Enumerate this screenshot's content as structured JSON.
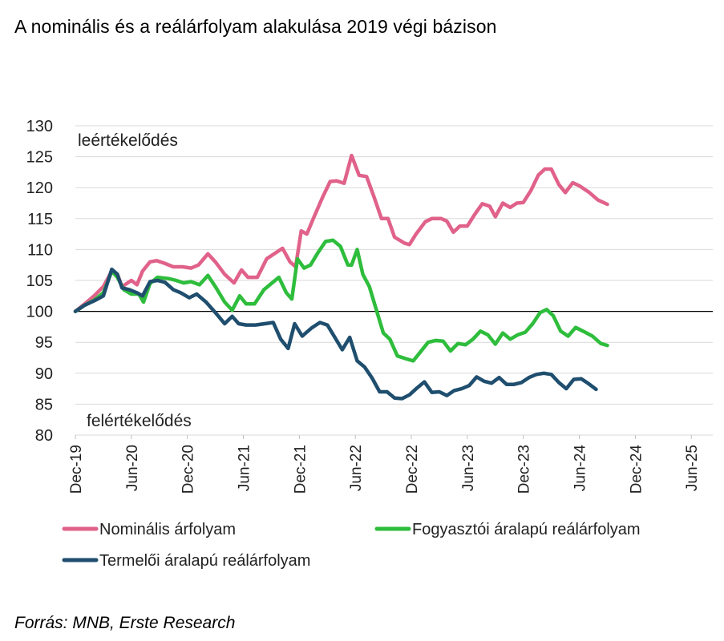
{
  "title": "A nominális és a reálárfolyam alakulása 2019 végi bázison",
  "source": "Forrás: MNB, Erste Research",
  "chart_data": {
    "type": "line",
    "title": "A nominális és a reálárfolyam alakulása 2019 végi bázison",
    "ylim": [
      80,
      130
    ],
    "yticks": [
      80,
      85,
      90,
      95,
      100,
      105,
      110,
      115,
      120,
      125,
      130
    ],
    "xlim": [
      0,
      68
    ],
    "xticks": [
      {
        "label": "Dec-19",
        "x": 0
      },
      {
        "label": "Jun-20",
        "x": 6
      },
      {
        "label": "Dec-20",
        "x": 12
      },
      {
        "label": "Jun-21",
        "x": 18
      },
      {
        "label": "Dec-21",
        "x": 24
      },
      {
        "label": "Jun-22",
        "x": 30
      },
      {
        "label": "Dec-22",
        "x": 36
      },
      {
        "label": "Jun-23",
        "x": 42
      },
      {
        "label": "Dec-23",
        "x": 48
      },
      {
        "label": "Jun-24",
        "x": 54
      },
      {
        "label": "Dec-24",
        "x": 60
      },
      {
        "label": "Jun-25",
        "x": 66
      }
    ],
    "reference_line": 100,
    "annotations": {
      "top": "leértékelődés",
      "bottom": "felértékelődés"
    },
    "series": [
      {
        "name": "Nominális árfolyam",
        "color": "#e0628a",
        "points": [
          [
            0,
            100
          ],
          [
            1,
            101.2
          ],
          [
            2,
            102.5
          ],
          [
            3,
            104
          ],
          [
            3.9,
            106.5
          ],
          [
            4.5,
            106
          ],
          [
            5,
            104
          ],
          [
            6,
            105
          ],
          [
            6.6,
            104.3
          ],
          [
            7.2,
            106.5
          ],
          [
            8,
            108
          ],
          [
            8.7,
            108.2
          ],
          [
            9.5,
            107.8
          ],
          [
            10.5,
            107.2
          ],
          [
            11.5,
            107.2
          ],
          [
            12.4,
            107
          ],
          [
            13.2,
            107.5
          ],
          [
            14.2,
            109.3
          ],
          [
            15,
            108
          ],
          [
            16,
            106
          ],
          [
            17,
            104.6
          ],
          [
            17.8,
            106.7
          ],
          [
            18.5,
            105.5
          ],
          [
            19.5,
            105.5
          ],
          [
            20.5,
            108.5
          ],
          [
            21.5,
            109.5
          ],
          [
            22.2,
            110.2
          ],
          [
            23,
            108
          ],
          [
            23.6,
            107.2
          ],
          [
            24.2,
            113
          ],
          [
            24.8,
            112.5
          ],
          [
            25.5,
            115
          ],
          [
            26.5,
            118.5
          ],
          [
            27.3,
            121
          ],
          [
            28,
            121.1
          ],
          [
            28.8,
            120.7
          ],
          [
            29.6,
            125.2
          ],
          [
            30.4,
            122
          ],
          [
            31.2,
            121.8
          ],
          [
            32,
            118.5
          ],
          [
            32.8,
            115
          ],
          [
            33.5,
            115
          ],
          [
            34.2,
            112
          ],
          [
            35.3,
            111
          ],
          [
            35.8,
            110.8
          ],
          [
            36.5,
            112.5
          ],
          [
            37.5,
            114.5
          ],
          [
            38.2,
            115
          ],
          [
            39.2,
            115
          ],
          [
            39.8,
            114.6
          ],
          [
            40.5,
            112.8
          ],
          [
            41.2,
            113.8
          ],
          [
            42,
            113.8
          ],
          [
            42.8,
            115.7
          ],
          [
            43.6,
            117.4
          ],
          [
            44.4,
            117
          ],
          [
            45,
            115.3
          ],
          [
            45.8,
            117.5
          ],
          [
            46.6,
            116.8
          ],
          [
            47.3,
            117.5
          ],
          [
            48,
            117.6
          ],
          [
            48.8,
            119.5
          ],
          [
            49.6,
            122
          ],
          [
            50.3,
            123
          ],
          [
            51,
            123
          ],
          [
            51.8,
            120.5
          ],
          [
            52.5,
            119.2
          ],
          [
            53.3,
            120.8
          ],
          [
            54,
            120.3
          ],
          [
            55,
            119.3
          ],
          [
            56,
            118
          ],
          [
            57,
            117.3
          ]
        ]
      },
      {
        "name": "Fogyasztói áralapú reálárfolyam",
        "color": "#2ebd3c",
        "points": [
          [
            0,
            100
          ],
          [
            1,
            101
          ],
          [
            2,
            101.8
          ],
          [
            3,
            103
          ],
          [
            3.9,
            106.5
          ],
          [
            4.5,
            105.5
          ],
          [
            5.2,
            103.5
          ],
          [
            6,
            102.8
          ],
          [
            6.8,
            102.8
          ],
          [
            7.3,
            101.5
          ],
          [
            8,
            104.5
          ],
          [
            8.8,
            105.5
          ],
          [
            10,
            105.3
          ],
          [
            10.8,
            105
          ],
          [
            11.6,
            104.6
          ],
          [
            12.4,
            104.8
          ],
          [
            13.3,
            104.3
          ],
          [
            14.2,
            105.8
          ],
          [
            15,
            104
          ],
          [
            16,
            101.5
          ],
          [
            16.8,
            100.2
          ],
          [
            17.6,
            102.5
          ],
          [
            18.3,
            101.2
          ],
          [
            19.2,
            101.2
          ],
          [
            20.2,
            103.5
          ],
          [
            21,
            104.5
          ],
          [
            21.8,
            105.5
          ],
          [
            22.6,
            103
          ],
          [
            23.2,
            102
          ],
          [
            23.8,
            108.5
          ],
          [
            24.5,
            107
          ],
          [
            25.2,
            107.5
          ],
          [
            26,
            109.5
          ],
          [
            26.8,
            111.3
          ],
          [
            27.6,
            111.5
          ],
          [
            28.4,
            110.5
          ],
          [
            29.2,
            107.5
          ],
          [
            29.6,
            107.5
          ],
          [
            30.2,
            110
          ],
          [
            30.8,
            106
          ],
          [
            31.5,
            104
          ],
          [
            32.2,
            100.5
          ],
          [
            33,
            96.5
          ],
          [
            33.7,
            95.5
          ],
          [
            34.5,
            92.8
          ],
          [
            35.5,
            92.3
          ],
          [
            36.2,
            92
          ],
          [
            37,
            93.5
          ],
          [
            37.8,
            95
          ],
          [
            38.6,
            95.3
          ],
          [
            39.4,
            95.2
          ],
          [
            40.2,
            93.6
          ],
          [
            41,
            94.8
          ],
          [
            41.8,
            94.6
          ],
          [
            42.6,
            95.5
          ],
          [
            43.4,
            96.8
          ],
          [
            44.2,
            96.2
          ],
          [
            45,
            94.7
          ],
          [
            45.8,
            96.5
          ],
          [
            46.6,
            95.5
          ],
          [
            47.4,
            96.2
          ],
          [
            48.2,
            96.6
          ],
          [
            49,
            98
          ],
          [
            49.8,
            99.8
          ],
          [
            50.5,
            100.3
          ],
          [
            51.2,
            99.3
          ],
          [
            52,
            96.8
          ],
          [
            52.8,
            96
          ],
          [
            53.6,
            97.4
          ],
          [
            54.4,
            96.8
          ],
          [
            55.4,
            96
          ],
          [
            56.3,
            94.8
          ],
          [
            57,
            94.5
          ]
        ]
      },
      {
        "name": "Termelői áralapú reálárfolyam",
        "color": "#1f4e6e",
        "points": [
          [
            0,
            100
          ],
          [
            1,
            101
          ],
          [
            2,
            101.7
          ],
          [
            3,
            102.5
          ],
          [
            3.9,
            106.8
          ],
          [
            4.5,
            106
          ],
          [
            5,
            103.8
          ],
          [
            5.8,
            103.5
          ],
          [
            6.6,
            103
          ],
          [
            7.2,
            102.5
          ],
          [
            8,
            104.8
          ],
          [
            8.8,
            105
          ],
          [
            9.6,
            104.7
          ],
          [
            10.5,
            103.5
          ],
          [
            11.3,
            103
          ],
          [
            12.2,
            102.2
          ],
          [
            13,
            102.8
          ],
          [
            14,
            101.5
          ],
          [
            15,
            99.8
          ],
          [
            16,
            98
          ],
          [
            16.8,
            99.2
          ],
          [
            17.5,
            98
          ],
          [
            18.3,
            97.8
          ],
          [
            19.3,
            97.8
          ],
          [
            20.3,
            98
          ],
          [
            21.2,
            98.2
          ],
          [
            22,
            95.5
          ],
          [
            22.8,
            94
          ],
          [
            23.5,
            98
          ],
          [
            24.3,
            96
          ],
          [
            25.3,
            97.3
          ],
          [
            26.2,
            98.2
          ],
          [
            27,
            97.8
          ],
          [
            27.8,
            95.8
          ],
          [
            28.6,
            93.8
          ],
          [
            29.4,
            95.8
          ],
          [
            30.2,
            92
          ],
          [
            31,
            91
          ],
          [
            31.8,
            89.2
          ],
          [
            32.6,
            87
          ],
          [
            33.4,
            87
          ],
          [
            34.2,
            86
          ],
          [
            35,
            85.9
          ],
          [
            35.8,
            86.5
          ],
          [
            36.6,
            87.6
          ],
          [
            37.4,
            88.6
          ],
          [
            38.2,
            86.9
          ],
          [
            39,
            87
          ],
          [
            39.8,
            86.4
          ],
          [
            40.6,
            87.2
          ],
          [
            41.4,
            87.5
          ],
          [
            42.2,
            88
          ],
          [
            43,
            89.4
          ],
          [
            43.8,
            88.7
          ],
          [
            44.6,
            88.4
          ],
          [
            45.4,
            89.3
          ],
          [
            46.2,
            88.2
          ],
          [
            47,
            88.2
          ],
          [
            47.8,
            88.5
          ],
          [
            48.6,
            89.3
          ],
          [
            49.4,
            89.8
          ],
          [
            50.2,
            90
          ],
          [
            51,
            89.8
          ],
          [
            51.8,
            88.5
          ],
          [
            52.6,
            87.5
          ],
          [
            53.4,
            89
          ],
          [
            54.2,
            89.1
          ],
          [
            55,
            88.3
          ],
          [
            55.8,
            87.4
          ]
        ]
      }
    ],
    "legend": [
      {
        "label": "Nominális árfolyam",
        "color": "#e0628a"
      },
      {
        "label": "Fogyasztói áralapú reálárfolyam",
        "color": "#2ebd3c"
      },
      {
        "label": "Termelői áralapú reálárfolyam",
        "color": "#1f4e6e"
      }
    ]
  }
}
